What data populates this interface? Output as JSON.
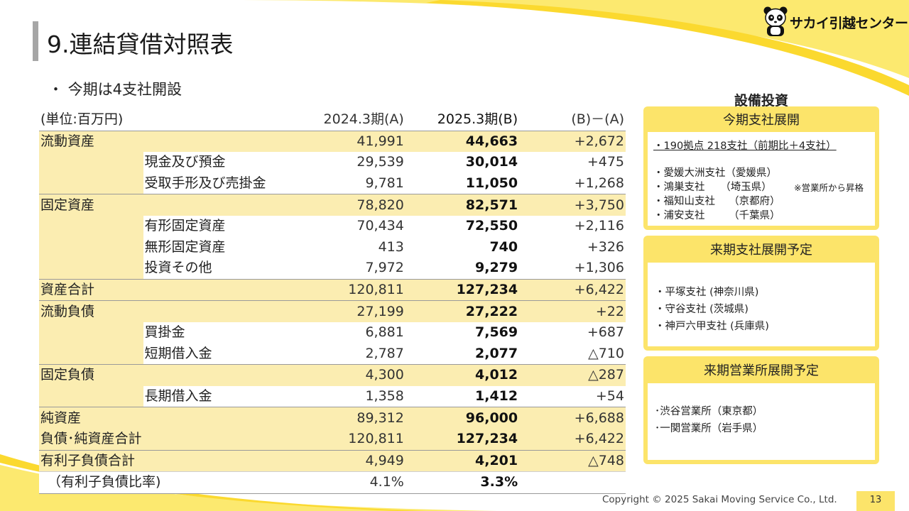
{
  "header": {
    "title": "9.連結貸借対照表",
    "logo_text": "サカイ引越センター",
    "logo_icon": "panda-icon"
  },
  "bullet": "・ 今期は4支社開設",
  "table": {
    "unit_label": "(単位:百万円)",
    "col_a": "2024.3期(A)",
    "col_b": "2025.3期(B)",
    "col_diff": "(B)－(A)",
    "rows": [
      {
        "cat": "流動資産",
        "sub": "",
        "a": "41,991",
        "b": "44,663",
        "d": "+2,672"
      },
      {
        "cat": "",
        "sub": "現金及び預金",
        "a": "29,539",
        "b": "30,014",
        "d": "+475"
      },
      {
        "cat": "",
        "sub": "受取手形及び売掛金",
        "a": "9,781",
        "b": "11,050",
        "d": "+1,268"
      },
      {
        "cat": "固定資産",
        "sub": "",
        "a": "78,820",
        "b": "82,571",
        "d": "+3,750"
      },
      {
        "cat": "",
        "sub": "有形固定資産",
        "a": "70,434",
        "b": "72,550",
        "d": "+2,116"
      },
      {
        "cat": "",
        "sub": "無形固定資産",
        "a": "413",
        "b": "740",
        "d": "+326"
      },
      {
        "cat": "",
        "sub": "投資その他",
        "a": "7,972",
        "b": "9,279",
        "d": "+1,306"
      },
      {
        "cat": "資産合計",
        "sub": "",
        "a": "120,811",
        "b": "127,234",
        "d": "+6,422"
      },
      {
        "cat": "流動負債",
        "sub": "",
        "a": "27,199",
        "b": "27,222",
        "d": "+22"
      },
      {
        "cat": "",
        "sub": "買掛金",
        "a": "6,881",
        "b": "7,569",
        "d": "+687"
      },
      {
        "cat": "",
        "sub": "短期借入金",
        "a": "2,787",
        "b": "2,077",
        "d": "△710"
      },
      {
        "cat": "固定負債",
        "sub": "",
        "a": "4,300",
        "b": "4,012",
        "d": "△287"
      },
      {
        "cat": "",
        "sub": "長期借入金",
        "a": "1,358",
        "b": "1,412",
        "d": "+54"
      },
      {
        "cat": "純資産",
        "sub": "",
        "a": "89,312",
        "b": "96,000",
        "d": "+6,688"
      },
      {
        "cat": "負債･純資産合計",
        "sub": "",
        "a": "120,811",
        "b": "127,234",
        "d": "+6,422"
      },
      {
        "cat": "有利子負債合計",
        "sub": "",
        "a": "4,949",
        "b": "4,201",
        "d": "△748"
      },
      {
        "cat": "（有利子負債比率)",
        "sub": "",
        "a": "4.1%",
        "b": "3.3%",
        "d": ""
      }
    ]
  },
  "capex": {
    "title": "設備投資",
    "panel1": {
      "head": "今期支社展開",
      "summary": "・190拠点 218支社（前期比＋4支社）",
      "items": [
        "・愛媛大洲支社（愛媛県）",
        "・鴻巣支社　　（埼玉県）",
        "・福知山支社　 （京都府）",
        "・浦安支社　　 （千葉県）"
      ],
      "note": "※営業所から昇格"
    },
    "panel2": {
      "head": "来期支社展開予定",
      "items": [
        "・平塚支社 (神奈川県)",
        "・守谷支社 (茨城県)",
        "・神戸六甲支社 (兵庫県)"
      ]
    },
    "panel3": {
      "head": "来期営業所展開予定",
      "items": [
        "･渋谷営業所（東京都）",
        "･一関営業所（岩手県）"
      ]
    }
  },
  "footer": {
    "copyright": "Copyright © 2025 Sakai Moving Service Co., Ltd.",
    "page_number": "13"
  },
  "colors": {
    "accent_yellow": "#fce46a",
    "row_highlight": "#fbedb1",
    "title_bar": "#a6a6a6"
  }
}
